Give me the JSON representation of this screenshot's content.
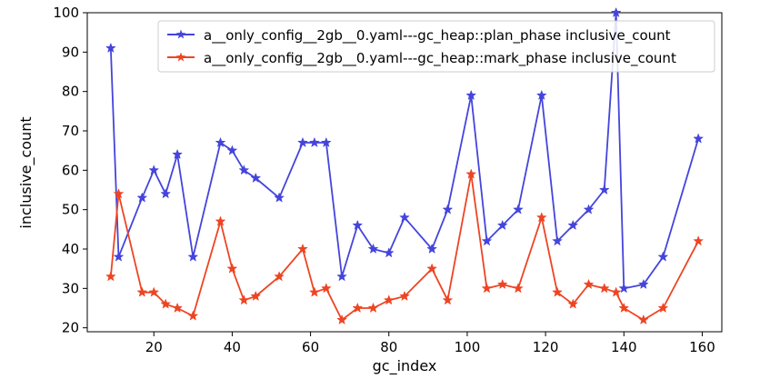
{
  "chart_data": {
    "type": "line",
    "xlabel": "gc_index",
    "ylabel": "inclusive_count",
    "xlim": [
      3,
      165
    ],
    "ylim": [
      19,
      100
    ],
    "xticks": [
      20,
      40,
      60,
      80,
      100,
      120,
      140,
      160
    ],
    "yticks": [
      20,
      30,
      40,
      50,
      60,
      70,
      80,
      90,
      100
    ],
    "grid": false,
    "legend_position": "top-right",
    "series": [
      {
        "name": "a__only_config__2gb__0.yaml---gc_heap::plan_phase inclusive_count",
        "color": "#4444dd",
        "marker": "star",
        "x": [
          9,
          11,
          17,
          20,
          23,
          26,
          30,
          37,
          40,
          43,
          46,
          52,
          58,
          61,
          64,
          68,
          72,
          76,
          80,
          84,
          91,
          95,
          101,
          105,
          109,
          113,
          119,
          123,
          127,
          131,
          135,
          138,
          140,
          145,
          150,
          159
        ],
        "y": [
          91,
          38,
          53,
          60,
          54,
          64,
          38,
          67,
          65,
          60,
          58,
          53,
          67,
          67,
          67,
          33,
          46,
          40,
          39,
          48,
          40,
          50,
          79,
          42,
          46,
          50,
          79,
          42,
          46,
          50,
          55,
          100,
          30,
          31,
          38,
          68
        ]
      },
      {
        "name": "a__only_config__2gb__0.yaml---gc_heap::mark_phase inclusive_count",
        "color": "#ee4422",
        "marker": "star",
        "x": [
          9,
          11,
          17,
          20,
          23,
          26,
          30,
          37,
          40,
          43,
          46,
          52,
          58,
          61,
          64,
          68,
          72,
          76,
          80,
          84,
          91,
          95,
          101,
          105,
          109,
          113,
          119,
          123,
          127,
          131,
          135,
          138,
          140,
          145,
          150,
          159
        ],
        "y": [
          33,
          54,
          29,
          29,
          26,
          25,
          23,
          47,
          35,
          27,
          28,
          33,
          40,
          29,
          30,
          22,
          25,
          25,
          27,
          28,
          35,
          27,
          59,
          30,
          31,
          30,
          48,
          29,
          26,
          31,
          30,
          29,
          25,
          22,
          25,
          42
        ]
      }
    ]
  }
}
